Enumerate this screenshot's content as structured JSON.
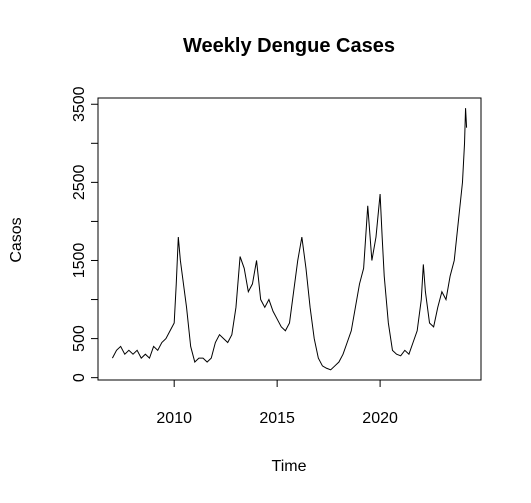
{
  "chart_data": {
    "type": "line",
    "title": "Weekly Dengue Cases",
    "x_label": "Time",
    "y_label": "Casos",
    "x": [
      2007.0,
      2007.2,
      2007.4,
      2007.6,
      2007.8,
      2008.0,
      2008.2,
      2008.4,
      2008.6,
      2008.8,
      2009.0,
      2009.2,
      2009.4,
      2009.6,
      2009.8,
      2010.0,
      2010.1,
      2010.2,
      2010.3,
      2010.4,
      2010.6,
      2010.8,
      2011.0,
      2011.2,
      2011.4,
      2011.6,
      2011.8,
      2012.0,
      2012.2,
      2012.4,
      2012.6,
      2012.8,
      2013.0,
      2013.2,
      2013.4,
      2013.6,
      2013.8,
      2014.0,
      2014.2,
      2014.4,
      2014.6,
      2014.8,
      2015.0,
      2015.2,
      2015.4,
      2015.6,
      2015.8,
      2016.0,
      2016.2,
      2016.4,
      2016.6,
      2016.8,
      2017.0,
      2017.2,
      2017.4,
      2017.6,
      2017.8,
      2018.0,
      2018.2,
      2018.4,
      2018.6,
      2018.8,
      2019.0,
      2019.2,
      2019.4,
      2019.6,
      2019.8,
      2020.0,
      2020.1,
      2020.2,
      2020.4,
      2020.6,
      2020.8,
      2021.0,
      2021.2,
      2021.4,
      2021.6,
      2021.8,
      2022.0,
      2022.1,
      2022.2,
      2022.4,
      2022.6,
      2022.8,
      2023.0,
      2023.2,
      2023.4,
      2023.6,
      2023.8,
      2024.0,
      2024.1,
      2024.15,
      2024.2
    ],
    "series": [
      {
        "color": "#000000",
        "values": [
          250,
          350,
          400,
          300,
          350,
          300,
          350,
          250,
          300,
          250,
          400,
          350,
          450,
          500,
          600,
          700,
          1200,
          1800,
          1500,
          1300,
          900,
          400,
          200,
          250,
          250,
          200,
          250,
          450,
          550,
          500,
          450,
          550,
          900,
          1550,
          1400,
          1100,
          1200,
          1500,
          1000,
          900,
          1000,
          850,
          750,
          650,
          600,
          700,
          1100,
          1500,
          1800,
          1400,
          900,
          500,
          250,
          150,
          120,
          100,
          150,
          200,
          300,
          450,
          600,
          900,
          1200,
          1400,
          2200,
          1500,
          1800,
          2350,
          1800,
          1300,
          700,
          350,
          300,
          280,
          350,
          300,
          450,
          600,
          1000,
          1450,
          1100,
          700,
          650,
          900,
          1100,
          1000,
          1300,
          1500,
          2000,
          2500,
          3000,
          3450,
          3200
        ]
      }
    ],
    "xlim": [
      2006.3,
      2024.9
    ],
    "ylim": [
      -30,
      3580
    ],
    "xticks": [
      2010,
      2015,
      2020
    ],
    "yticks": [
      0,
      500,
      1500,
      2500,
      3500
    ],
    "yminor_ticks": [
      1000,
      2000,
      3000
    ]
  }
}
